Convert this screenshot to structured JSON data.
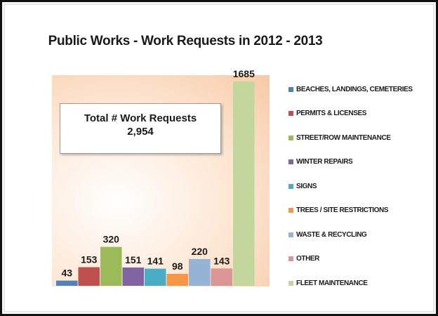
{
  "chart_data": {
    "type": "bar",
    "title": "Public Works - Work Requests in 2012 - 2013",
    "categories": [
      "BEACHES, LANDINGS, CEMETERIES",
      "PERMITS & LICENSES",
      "STREET/ROW MAINTENANCE",
      "WINTER REPAIRS",
      "SIGNS",
      "TREES / SITE RESTRICTIONS",
      "WASTE & RECYCLING",
      "OTHER",
      "FLEET MAINTENANCE"
    ],
    "values": [
      43,
      153,
      320,
      151,
      141,
      98,
      220,
      143,
      1685
    ],
    "colors": [
      "#4f81bd",
      "#c0504d",
      "#9bbb59",
      "#8064a2",
      "#4bacc6",
      "#f79646",
      "#95b3d7",
      "#d99694",
      "#c3d69b"
    ],
    "xlabel": "",
    "ylabel": "",
    "ylim": [
      0,
      1685
    ],
    "grid": false,
    "legend_position": "right",
    "annotation": {
      "label": "Total # Work Requests",
      "value": "2,954"
    }
  }
}
